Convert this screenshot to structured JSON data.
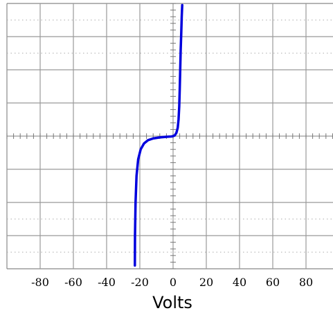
{
  "chart_data": {
    "type": "line",
    "title": "",
    "xlabel": "Volts",
    "ylabel": "",
    "xlim": [
      -100,
      100
    ],
    "ylim": [
      -4,
      4
    ],
    "x_ticks": [
      -80,
      -60,
      -40,
      -20,
      0,
      20,
      40,
      60,
      80
    ],
    "x_tick_labels": [
      "-80",
      "-60",
      "-40",
      "-20",
      "0",
      "20",
      "40",
      "60",
      "80"
    ],
    "grid": true,
    "series": [
      {
        "color": "#0000dd",
        "x": [
          -23.0,
          -22.9,
          -22.6,
          -22.0,
          -21.0,
          -19.5,
          -17.5,
          -15.0,
          -12.0,
          -8.0,
          -4.0,
          -1.0,
          0.0,
          1.0,
          2.0,
          2.8,
          3.3,
          3.7,
          4.0,
          4.3,
          4.6,
          4.9,
          5.2,
          5.5
        ],
        "y": [
          -3.9,
          -3.0,
          -2.0,
          -1.2,
          -0.7,
          -0.4,
          -0.22,
          -0.12,
          -0.07,
          -0.04,
          -0.02,
          -0.01,
          0.0,
          0.02,
          0.1,
          0.25,
          0.5,
          0.9,
          1.4,
          2.0,
          2.6,
          3.1,
          3.6,
          3.95
        ]
      }
    ]
  }
}
